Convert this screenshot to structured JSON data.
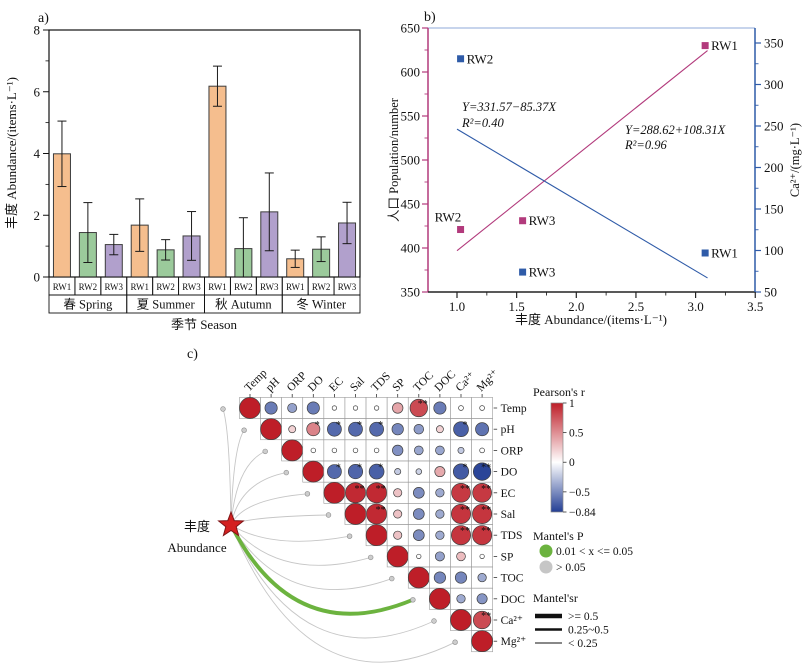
{
  "panels": {
    "a": {
      "label": "a)"
    },
    "b": {
      "label": "b)"
    },
    "c": {
      "label": "c)"
    }
  },
  "chart_data": [
    {
      "type": "bar",
      "panel": "a",
      "ylabel": "丰度 Abundance/(items·L⁻¹)",
      "xlabel": "季节 Season",
      "ylim": [
        0,
        8
      ],
      "yticks": [
        0,
        2,
        4,
        6,
        8
      ],
      "yminors": [
        1,
        3,
        5,
        7
      ],
      "categories": [
        "春 Spring",
        "夏 Summer",
        "秋 Autumn",
        "冬 Winter"
      ],
      "subgroups": [
        "RW1",
        "RW2",
        "RW3"
      ],
      "bar_colors": [
        "#F5BE8E",
        "#9BCA9B",
        "#B1A0CC"
      ],
      "series": [
        {
          "name": "RW1",
          "values": [
            3.99,
            1.68,
            6.18,
            0.59
          ],
          "errors": [
            1.06,
            0.85,
            0.65,
            0.28
          ]
        },
        {
          "name": "RW2",
          "values": [
            1.44,
            0.88,
            0.92,
            0.9
          ],
          "errors": [
            0.97,
            0.33,
            1.0,
            0.4
          ]
        },
        {
          "name": "RW3",
          "values": [
            1.05,
            1.33,
            2.11,
            1.75
          ],
          "errors": [
            0.33,
            0.79,
            1.26,
            0.67
          ]
        }
      ]
    },
    {
      "type": "scatter",
      "panel": "b",
      "xlabel": "丰度 Abundance/(items·L⁻¹)",
      "xlim": [
        0.75,
        3.5
      ],
      "xticks": [
        "1.0",
        "1.5",
        "2.0",
        "2.5",
        "3.0",
        "3.5"
      ],
      "axes": {
        "left": {
          "label": "人口 Population/number",
          "color": "#B23A7C",
          "lim": [
            350,
            650
          ],
          "ticks": [
            350,
            400,
            450,
            500,
            550,
            600,
            650
          ]
        },
        "right": {
          "label": "Ca²⁺/(mg·L⁻¹)",
          "color": "#2F5BA8",
          "lim": [
            50,
            350
          ],
          "ticks": [
            50,
            100,
            150,
            200,
            250,
            300,
            350
          ]
        }
      },
      "series": [
        {
          "name": "人口 Population",
          "axis": "left",
          "color": "#B23A7C",
          "marker": "square",
          "points": [
            {
              "label": "RW2",
              "x": 1.03,
              "y": 421,
              "label_dx": -26,
              "label_dy": -8
            },
            {
              "label": "RW3",
              "x": 1.55,
              "y": 431,
              "label_dx": 6,
              "label_dy": 4.5
            },
            {
              "label": "RW1",
              "x": 3.08,
              "y": 630,
              "label_dx": 6,
              "label_dy": 4.5
            }
          ],
          "fit": {
            "equation": "Y=288.62+108.31X",
            "r2": "R²=0.96",
            "intercept": 288.62,
            "slope": 108.31,
            "x_start": 1.0,
            "x_end": 3.1
          }
        },
        {
          "name": "Ca²⁺",
          "axis": "right",
          "color": "#2F5BA8",
          "marker": "square",
          "points": [
            {
              "label": "RW2",
              "x": 1.03,
              "y": 331,
              "label_dx": 6,
              "label_dy": 4.5
            },
            {
              "label": "RW3",
              "x": 1.55,
              "y": 74,
              "label_dx": 6,
              "label_dy": 4.5
            },
            {
              "label": "RW1",
              "x": 3.08,
              "y": 97,
              "label_dx": 6,
              "label_dy": 4.5
            }
          ],
          "fit": {
            "equation": "Y=331.57−85.37X",
            "r2": "R²=0.40",
            "intercept": 331.57,
            "slope": -85.37,
            "x_start": 1.0,
            "x_end": 3.1
          }
        }
      ]
    },
    {
      "type": "correlation_matrix",
      "panel": "c",
      "variables": [
        "Temp",
        "pH",
        "ORP",
        "DO",
        "EC",
        "Sal",
        "TDS",
        "SP",
        "TOC",
        "DOC",
        "Ca²⁺",
        "Mg²⁺"
      ],
      "pearson_r": [
        [
          1,
          -0.5,
          -0.32,
          -0.5,
          0.05,
          0.05,
          0.05,
          0.4,
          0.8,
          -0.5,
          -0.07,
          -0.07
        ],
        [
          1,
          0.2,
          0.55,
          -0.6,
          -0.6,
          -0.6,
          -0.45,
          -0.35,
          0.2,
          -0.65,
          -0.55
        ],
        [
          1,
          0.06,
          0.06,
          0.06,
          0.06,
          -0.4,
          -0.3,
          -0.3,
          -0.15,
          -0.07
        ],
        [
          1,
          -0.6,
          -0.62,
          -0.65,
          -0.15,
          -0.12,
          0.38,
          -0.68,
          -0.8
        ],
        [
          1,
          0.95,
          0.95,
          0.27,
          -0.42,
          -0.28,
          0.88,
          0.88
        ],
        [
          1,
          0.95,
          0.27,
          -0.42,
          -0.28,
          0.9,
          0.9
        ],
        [
          1,
          0.27,
          -0.42,
          -0.28,
          0.9,
          0.9
        ],
        [
          1,
          -0.05,
          -0.32,
          0.3,
          -0.05
        ],
        [
          1,
          -0.45,
          -0.45,
          -0.28
        ],
        [
          1,
          -0.28,
          -0.38
        ],
        [
          1,
          0.8
        ],
        [
          1
        ]
      ],
      "significance": [
        [
          "",
          "",
          "",
          "",
          "",
          "",
          "",
          "",
          "**",
          "",
          "",
          ""
        ],
        [
          "",
          "",
          "*",
          "*",
          "*",
          "*",
          "",
          "",
          "",
          "*",
          ""
        ],
        [
          "",
          "",
          "",
          "",
          "",
          "",
          "",
          "",
          "",
          ""
        ],
        [
          "",
          "*",
          "*",
          "*",
          "",
          "",
          "",
          "*",
          "**"
        ],
        [
          "",
          "**",
          "**",
          "",
          "",
          "",
          "**",
          "**"
        ],
        [
          "",
          "**",
          "",
          "",
          "",
          "**",
          "**"
        ],
        [
          "",
          "",
          "",
          "",
          "**",
          "**"
        ],
        [
          "",
          "",
          "",
          "",
          ""
        ],
        [
          "",
          "",
          "",
          ""
        ],
        [
          "",
          "",
          ""
        ],
        [
          "",
          "**"
        ],
        [
          ""
        ]
      ],
      "mantel": {
        "source_label_zh": "丰度",
        "source_label_en": "Abundance",
        "edges": [
          {
            "target": "Temp",
            "mantel_p": "> 0.05",
            "mantel_r": "< 0.25"
          },
          {
            "target": "pH",
            "mantel_p": "> 0.05",
            "mantel_r": "< 0.25"
          },
          {
            "target": "ORP",
            "mantel_p": "> 0.05",
            "mantel_r": "< 0.25"
          },
          {
            "target": "DO",
            "mantel_p": "> 0.05",
            "mantel_r": "< 0.25"
          },
          {
            "target": "EC",
            "mantel_p": "> 0.05",
            "mantel_r": "< 0.25"
          },
          {
            "target": "Sal",
            "mantel_p": "> 0.05",
            "mantel_r": "< 0.25"
          },
          {
            "target": "TDS",
            "mantel_p": "> 0.05",
            "mantel_r": "< 0.25"
          },
          {
            "target": "SP",
            "mantel_p": "> 0.05",
            "mantel_r": "< 0.25"
          },
          {
            "target": "TOC",
            "mantel_p": "> 0.05",
            "mantel_r": "< 0.25"
          },
          {
            "target": "DOC",
            "mantel_p": "0.01 < x <= 0.05",
            "mantel_r": "0.25~0.5"
          },
          {
            "target": "Ca²⁺",
            "mantel_p": "> 0.05",
            "mantel_r": "< 0.25"
          },
          {
            "target": "Mg²⁺",
            "mantel_p": "> 0.05",
            "mantel_r": "< 0.25"
          }
        ]
      },
      "colors": {
        "positive_max": "#BE1E28",
        "negative_max": "#233E94",
        "zero": "#FFFFFF",
        "green_edge": "#6CB33F",
        "gray_edge": "#C6C6C6",
        "star": "#D42020"
      }
    }
  ],
  "legend": {
    "pearson_title": "Pearson's r",
    "pearson_gradient": [
      "#BE1E28",
      "#FFFFFF",
      "#233E94"
    ],
    "pearson_ticks": [
      {
        "v": 1,
        "label": "1"
      },
      {
        "v": 0.5,
        "label": "0.5"
      },
      {
        "v": 0,
        "label": "0"
      },
      {
        "v": -0.5,
        "label": "−0.5"
      },
      {
        "v": -0.84,
        "label": "−0.84"
      }
    ],
    "mantel_p_title": "Mantel's P",
    "mantel_p_items": [
      {
        "color": "#6CB33F",
        "label": "0.01 < x <= 0.05"
      },
      {
        "color": "#C6C6C6",
        "label": "> 0.05"
      }
    ],
    "mantel_r_title": "Mantel'sr",
    "mantel_r_items": [
      {
        "width": 4.5,
        "label": ">= 0.5"
      },
      {
        "width": 2.4,
        "label": "0.25~0.5"
      },
      {
        "width": 1.1,
        "label": "< 0.25"
      }
    ]
  }
}
